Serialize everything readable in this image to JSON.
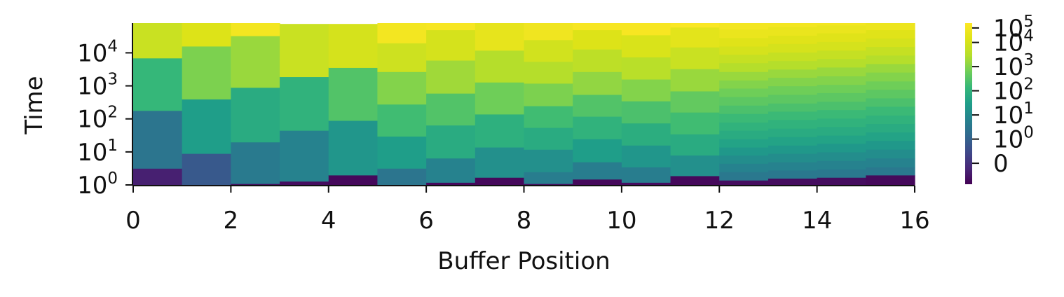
{
  "chart_data": {
    "type": "heatmap",
    "title": "",
    "xlabel": "Buffer Position",
    "ylabel": "Time",
    "xlim": [
      0,
      16
    ],
    "ylim_log10": [
      0,
      4.9
    ],
    "y_scale": "log",
    "x_ticks": [
      0,
      2,
      4,
      6,
      8,
      10,
      12,
      14,
      16
    ],
    "y_ticks": [
      {
        "value": 1,
        "base": "10",
        "exp": "0"
      },
      {
        "value": 10,
        "base": "10",
        "exp": "1"
      },
      {
        "value": 100,
        "base": "10",
        "exp": "2"
      },
      {
        "value": 1000,
        "base": "10",
        "exp": "3"
      },
      {
        "value": 10000,
        "base": "10",
        "exp": "4"
      }
    ],
    "colormap": "viridis",
    "colorbar": {
      "scale": "symlog",
      "ticks": [
        {
          "label": "0",
          "exp": "",
          "pos": 0.13
        },
        {
          "label": "10",
          "exp": "0",
          "pos": 0.28
        },
        {
          "label": "10",
          "exp": "1",
          "pos": 0.43
        },
        {
          "label": "10",
          "exp": "2",
          "pos": 0.58
        },
        {
          "label": "10",
          "exp": "3",
          "pos": 0.73
        },
        {
          "label": "10",
          "exp": "4",
          "pos": 0.88
        },
        {
          "label": "10",
          "exp": "5",
          "pos": 0.97
        }
      ]
    },
    "series": [
      {
        "x": 0,
        "boundaries": [
          1,
          3.2,
          180,
          7000,
          80000
        ],
        "levels": [
          0.08,
          0.35,
          0.6,
          0.85
        ]
      },
      {
        "x": 1,
        "boundaries": [
          1,
          9,
          400,
          16000,
          80000
        ],
        "levels": [
          0.25,
          0.5,
          0.72,
          0.9
        ]
      },
      {
        "x": 2,
        "boundaries": [
          1,
          1.1,
          20,
          900,
          33000,
          80000
        ],
        "levels": [
          0.03,
          0.37,
          0.55,
          0.76,
          0.97
        ]
      },
      {
        "x": 3,
        "boundaries": [
          1,
          1.3,
          45,
          1900,
          75000
        ],
        "levels": [
          0.03,
          0.4,
          0.58,
          0.85
        ]
      },
      {
        "x": 4,
        "boundaries": [
          1,
          2,
          90,
          3600,
          75000
        ],
        "levels": [
          0.02,
          0.47,
          0.65,
          0.88
        ]
      },
      {
        "x": 5,
        "boundaries": [
          1,
          3.2,
          30,
          280,
          2700,
          20000,
          80000
        ],
        "levels": [
          0.35,
          0.5,
          0.62,
          0.73,
          0.86,
          0.97
        ]
      },
      {
        "x": 6,
        "boundaries": [
          1,
          1.2,
          6.5,
          65,
          600,
          6000,
          50000,
          80000
        ],
        "levels": [
          0.02,
          0.4,
          0.55,
          0.65,
          0.77,
          0.88,
          0.98
        ]
      },
      {
        "x": 7,
        "boundaries": [
          1,
          1.7,
          14,
          140,
          1300,
          12000,
          80000
        ],
        "levels": [
          0.02,
          0.45,
          0.57,
          0.7,
          0.8,
          0.93
        ]
      },
      {
        "x": 8,
        "boundaries": [
          1,
          1.1,
          2.5,
          12,
          55,
          250,
          1200,
          5500,
          25000,
          80000
        ],
        "levels": [
          0.03,
          0.38,
          0.45,
          0.55,
          0.62,
          0.72,
          0.8,
          0.87,
          0.96
        ]
      },
      {
        "x": 9,
        "boundaries": [
          1,
          1.5,
          5,
          25,
          120,
          550,
          2700,
          13000,
          50000,
          80000
        ],
        "levels": [
          0.02,
          0.38,
          0.5,
          0.58,
          0.65,
          0.75,
          0.82,
          0.9,
          0.98
        ]
      },
      {
        "x": 10,
        "boundaries": [
          1,
          1.2,
          3.5,
          16,
          75,
          350,
          1600,
          7500,
          35000,
          80000
        ],
        "levels": [
          0.03,
          0.38,
          0.47,
          0.56,
          0.64,
          0.73,
          0.81,
          0.89,
          0.98
        ]
      },
      {
        "x": 11,
        "boundaries": [
          1,
          1.9,
          8,
          35,
          160,
          700,
          3300,
          15000,
          60000,
          80000
        ],
        "levels": [
          0.02,
          0.45,
          0.55,
          0.62,
          0.68,
          0.76,
          0.85,
          0.92,
          0.99
        ]
      },
      {
        "x": 12,
        "boundaries": [
          1,
          1.4,
          2.5,
          4.5,
          8,
          14,
          25,
          45,
          80,
          145,
          260,
          470,
          850,
          1500,
          2700,
          5000,
          9000,
          16000,
          29000,
          52000,
          80000
        ],
        "levels": [
          0.03,
          0.36,
          0.4,
          0.44,
          0.48,
          0.52,
          0.55,
          0.58,
          0.61,
          0.64,
          0.67,
          0.7,
          0.73,
          0.76,
          0.8,
          0.84,
          0.88,
          0.91,
          0.94,
          0.97
        ]
      },
      {
        "x": 13,
        "boundaries": [
          1,
          1.6,
          2.8,
          5,
          9,
          16,
          29,
          52,
          95,
          170,
          300,
          550,
          1000,
          1800,
          3200,
          5800,
          10500,
          19000,
          34000,
          62000,
          80000
        ],
        "levels": [
          0.03,
          0.36,
          0.4,
          0.44,
          0.48,
          0.52,
          0.55,
          0.58,
          0.61,
          0.64,
          0.67,
          0.7,
          0.73,
          0.76,
          0.8,
          0.84,
          0.88,
          0.91,
          0.94,
          0.97
        ]
      },
      {
        "x": 14,
        "boundaries": [
          1,
          1.7,
          3,
          5.5,
          10,
          18,
          32,
          58,
          105,
          190,
          340,
          620,
          1100,
          2000,
          3700,
          6700,
          12000,
          22000,
          40000,
          70000,
          80000
        ],
        "levels": [
          0.03,
          0.36,
          0.4,
          0.44,
          0.48,
          0.52,
          0.55,
          0.58,
          0.61,
          0.64,
          0.67,
          0.7,
          0.73,
          0.76,
          0.8,
          0.84,
          0.88,
          0.91,
          0.94,
          0.97
        ]
      },
      {
        "x": 15,
        "boundaries": [
          1,
          2,
          3.5,
          6.5,
          12,
          22,
          40,
          72,
          130,
          240,
          430,
          780,
          1400,
          2600,
          4700,
          8500,
          15500,
          28000,
          50000,
          80000
        ],
        "levels": [
          0.02,
          0.36,
          0.4,
          0.44,
          0.48,
          0.52,
          0.55,
          0.58,
          0.61,
          0.64,
          0.67,
          0.7,
          0.73,
          0.76,
          0.8,
          0.84,
          0.88,
          0.91,
          0.95
        ]
      }
    ]
  }
}
